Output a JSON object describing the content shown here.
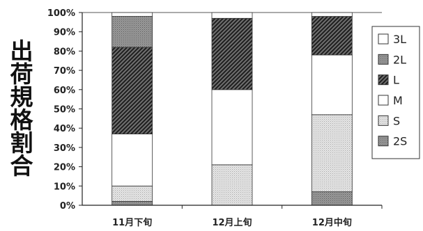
{
  "chart_data": {
    "type": "bar",
    "stacked": true,
    "categories": [
      "11月下旬",
      "12月上旬",
      "12月中旬"
    ],
    "series": [
      {
        "name": "2S",
        "values": [
          2,
          0,
          7
        ],
        "color": "#8a8a8a",
        "pattern": "dense-dots"
      },
      {
        "name": "S",
        "values": [
          8,
          21,
          40
        ],
        "color": "#d2d2d2",
        "pattern": "fine-dots"
      },
      {
        "name": "M",
        "values": [
          27,
          39,
          31
        ],
        "color": "#ffffff",
        "pattern": "none"
      },
      {
        "name": "L",
        "values": [
          45,
          37,
          20
        ],
        "color": "#3a3a3a",
        "pattern": "diagonal-hatch"
      },
      {
        "name": "2L",
        "values": [
          16,
          0,
          0
        ],
        "color": "#9c9c9c",
        "pattern": "dense-dots"
      },
      {
        "name": "3L",
        "values": [
          2,
          3,
          2
        ],
        "color": "#ffffff",
        "pattern": "none"
      }
    ],
    "legend_order": [
      "3L",
      "2L",
      "L",
      "M",
      "S",
      "2S"
    ],
    "legend_position": "right",
    "ylabel": "出荷規格割合",
    "xlabel": "",
    "title": "",
    "ylim": [
      0,
      100
    ],
    "yticks": [
      0,
      10,
      20,
      30,
      40,
      50,
      60,
      70,
      80,
      90,
      100
    ],
    "ytick_format": "percent",
    "grid": false
  }
}
